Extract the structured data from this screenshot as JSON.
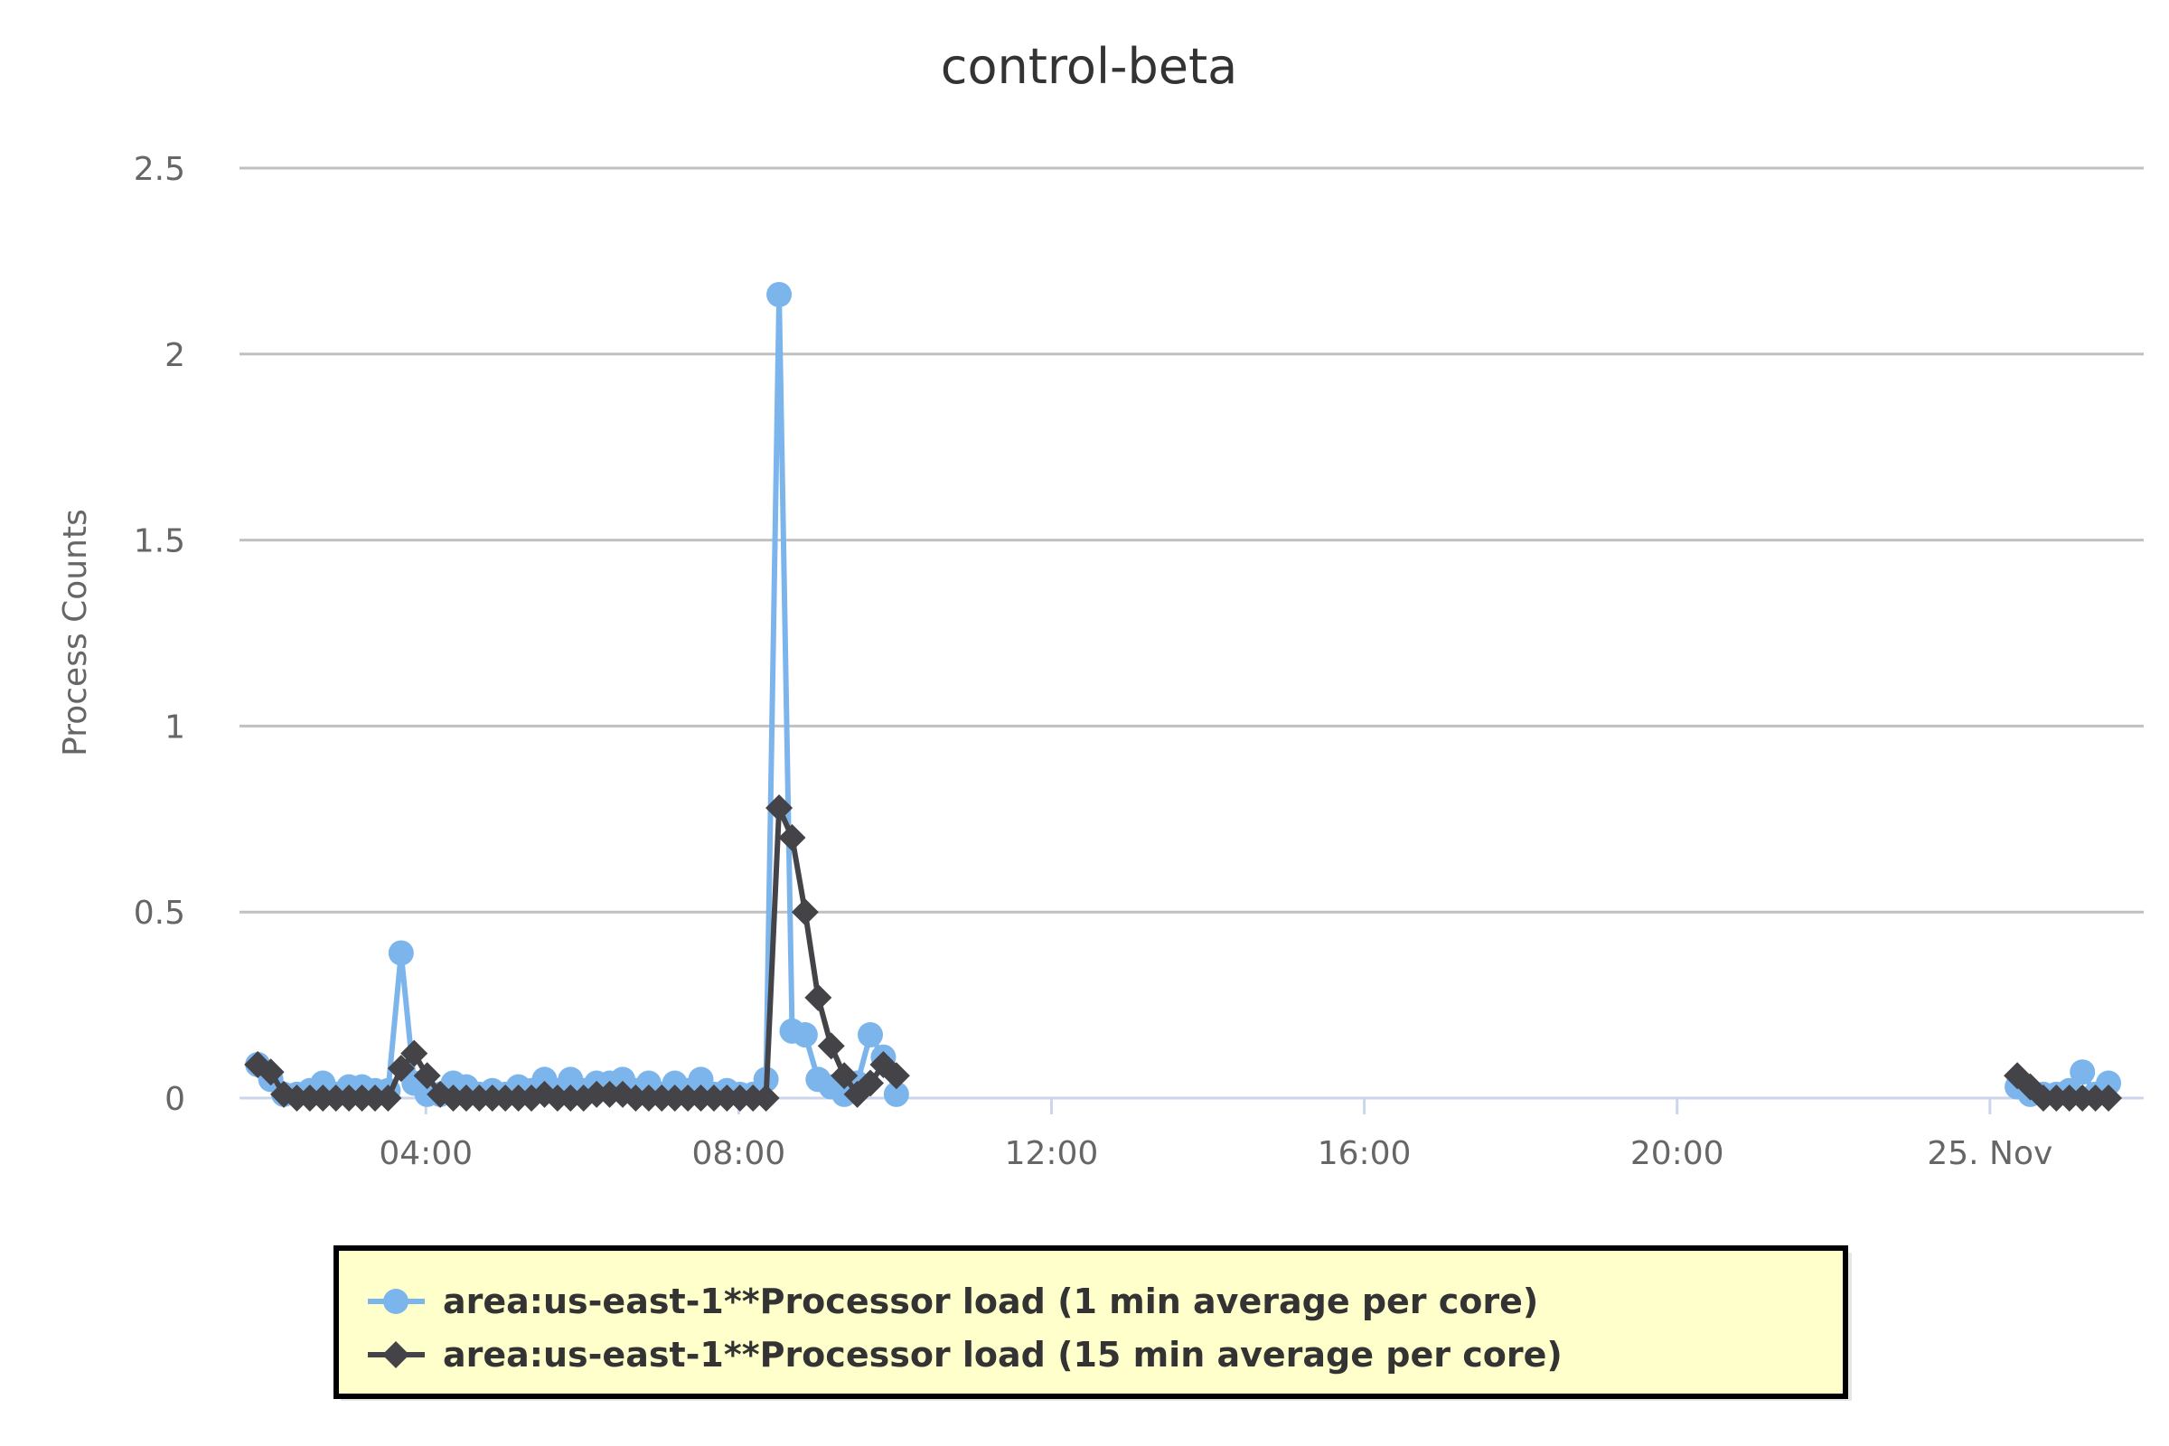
{
  "chart_data": {
    "type": "line",
    "title": "control-beta",
    "xlabel": "",
    "ylabel": "Process Counts",
    "ylim": [
      0,
      2.5
    ],
    "yticks": [
      {
        "value": 0,
        "label": "0"
      },
      {
        "value": 0.5,
        "label": "0.5"
      },
      {
        "value": 1,
        "label": "1"
      },
      {
        "value": 1.5,
        "label": "1.5"
      },
      {
        "value": 2,
        "label": "2"
      },
      {
        "value": 2.5,
        "label": "2.5"
      }
    ],
    "xlim": [
      "2024-11-24 01:37",
      "2024-11-25 01:58"
    ],
    "xticks": [
      {
        "value": "2024-11-24 04:00",
        "label": "04:00"
      },
      {
        "value": "2024-11-24 08:00",
        "label": "08:00"
      },
      {
        "value": "2024-11-24 12:00",
        "label": "12:00"
      },
      {
        "value": "2024-11-24 16:00",
        "label": "16:00"
      },
      {
        "value": "2024-11-24 20:00",
        "label": "20:00"
      },
      {
        "value": "2024-11-25 00:00",
        "label": "25. Nov"
      }
    ],
    "grid": true,
    "legend_position": "bottom",
    "series": [
      {
        "name": "area:us-east-1**Processor load (1 min average per core)",
        "color": "#7cb5ec",
        "marker": "circle",
        "segments": [
          [
            [
              "2024-11-24 01:51",
              0.09
            ],
            [
              "2024-11-24 02:01",
              0.05
            ],
            [
              "2024-11-24 02:11",
              0.01
            ],
            [
              "2024-11-24 02:21",
              0.01
            ],
            [
              "2024-11-24 02:31",
              0.02
            ],
            [
              "2024-11-24 02:41",
              0.04
            ],
            [
              "2024-11-24 02:51",
              0.01
            ],
            [
              "2024-11-24 03:01",
              0.03
            ],
            [
              "2024-11-24 03:11",
              0.03
            ],
            [
              "2024-11-24 03:21",
              0.02
            ],
            [
              "2024-11-24 03:31",
              0.02
            ],
            [
              "2024-11-24 03:41",
              0.39
            ],
            [
              "2024-11-24 03:51",
              0.04
            ],
            [
              "2024-11-24 04:01",
              0.01
            ],
            [
              "2024-11-24 04:11",
              0.01
            ],
            [
              "2024-11-24 04:21",
              0.04
            ],
            [
              "2024-11-24 04:31",
              0.03
            ],
            [
              "2024-11-24 04:41",
              0.01
            ],
            [
              "2024-11-24 04:51",
              0.02
            ],
            [
              "2024-11-24 05:01",
              0.01
            ],
            [
              "2024-11-24 05:11",
              0.03
            ],
            [
              "2024-11-24 05:21",
              0.02
            ],
            [
              "2024-11-24 05:31",
              0.05
            ],
            [
              "2024-11-24 05:41",
              0.02
            ],
            [
              "2024-11-24 05:51",
              0.05
            ],
            [
              "2024-11-24 06:01",
              0.02
            ],
            [
              "2024-11-24 06:11",
              0.04
            ],
            [
              "2024-11-24 06:21",
              0.04
            ],
            [
              "2024-11-24 06:31",
              0.05
            ],
            [
              "2024-11-24 06:41",
              0.02
            ],
            [
              "2024-11-24 06:51",
              0.04
            ],
            [
              "2024-11-24 07:01",
              0.01
            ],
            [
              "2024-11-24 07:11",
              0.04
            ],
            [
              "2024-11-24 07:21",
              0.02
            ],
            [
              "2024-11-24 07:31",
              0.05
            ],
            [
              "2024-11-24 07:41",
              0.01
            ],
            [
              "2024-11-24 07:51",
              0.02
            ],
            [
              "2024-11-24 08:01",
              0.01
            ],
            [
              "2024-11-24 08:11",
              0.01
            ],
            [
              "2024-11-24 08:21",
              0.05
            ],
            [
              "2024-11-24 08:31",
              2.16
            ],
            [
              "2024-11-24 08:41",
              0.18
            ],
            [
              "2024-11-24 08:51",
              0.17
            ],
            [
              "2024-11-24 09:01",
              0.05
            ],
            [
              "2024-11-24 09:11",
              0.03
            ],
            [
              "2024-11-24 09:21",
              0.01
            ],
            [
              "2024-11-24 09:31",
              0.04
            ],
            [
              "2024-11-24 09:41",
              0.17
            ],
            [
              "2024-11-24 09:51",
              0.11
            ],
            [
              "2024-11-24 10:01",
              0.01
            ]
          ],
          [
            [
              "2024-11-25 00:21",
              0.03
            ],
            [
              "2024-11-25 00:31",
              0.01
            ],
            [
              "2024-11-25 00:41",
              0.01
            ],
            [
              "2024-11-25 00:51",
              0.01
            ],
            [
              "2024-11-25 01:01",
              0.02
            ],
            [
              "2024-11-25 01:11",
              0.07
            ],
            [
              "2024-11-25 01:21",
              0.01
            ],
            [
              "2024-11-25 01:31",
              0.04
            ]
          ]
        ]
      },
      {
        "name": "area:us-east-1**Processor load (15 min average per core)",
        "color": "#434348",
        "marker": "diamond",
        "segments": [
          [
            [
              "2024-11-24 01:51",
              0.09
            ],
            [
              "2024-11-24 02:01",
              0.07
            ],
            [
              "2024-11-24 02:11",
              0.01
            ],
            [
              "2024-11-24 02:21",
              0.0
            ],
            [
              "2024-11-24 02:31",
              0.0
            ],
            [
              "2024-11-24 02:41",
              0.0
            ],
            [
              "2024-11-24 02:51",
              0.0
            ],
            [
              "2024-11-24 03:01",
              0.0
            ],
            [
              "2024-11-24 03:11",
              0.0
            ],
            [
              "2024-11-24 03:21",
              0.0
            ],
            [
              "2024-11-24 03:31",
              0.0
            ],
            [
              "2024-11-24 03:41",
              0.08
            ],
            [
              "2024-11-24 03:51",
              0.12
            ],
            [
              "2024-11-24 04:01",
              0.06
            ],
            [
              "2024-11-24 04:11",
              0.01
            ],
            [
              "2024-11-24 04:21",
              0.0
            ],
            [
              "2024-11-24 04:31",
              0.0
            ],
            [
              "2024-11-24 04:41",
              0.0
            ],
            [
              "2024-11-24 04:51",
              0.0
            ],
            [
              "2024-11-24 05:01",
              0.0
            ],
            [
              "2024-11-24 05:11",
              0.0
            ],
            [
              "2024-11-24 05:21",
              0.0
            ],
            [
              "2024-11-24 05:31",
              0.01
            ],
            [
              "2024-11-24 05:41",
              0.0
            ],
            [
              "2024-11-24 05:51",
              0.0
            ],
            [
              "2024-11-24 06:01",
              0.0
            ],
            [
              "2024-11-24 06:11",
              0.01
            ],
            [
              "2024-11-24 06:21",
              0.01
            ],
            [
              "2024-11-24 06:31",
              0.01
            ],
            [
              "2024-11-24 06:41",
              0.0
            ],
            [
              "2024-11-24 06:51",
              0.0
            ],
            [
              "2024-11-24 07:01",
              0.0
            ],
            [
              "2024-11-24 07:11",
              0.0
            ],
            [
              "2024-11-24 07:21",
              0.0
            ],
            [
              "2024-11-24 07:31",
              0.0
            ],
            [
              "2024-11-24 07:41",
              0.0
            ],
            [
              "2024-11-24 07:51",
              0.0
            ],
            [
              "2024-11-24 08:01",
              0.0
            ],
            [
              "2024-11-24 08:11",
              0.0
            ],
            [
              "2024-11-24 08:21",
              0.0
            ],
            [
              "2024-11-24 08:31",
              0.78
            ],
            [
              "2024-11-24 08:41",
              0.7
            ],
            [
              "2024-11-24 08:51",
              0.5
            ],
            [
              "2024-11-24 09:01",
              0.27
            ],
            [
              "2024-11-24 09:11",
              0.14
            ],
            [
              "2024-11-24 09:21",
              0.06
            ],
            [
              "2024-11-24 09:31",
              0.01
            ],
            [
              "2024-11-24 09:41",
              0.04
            ],
            [
              "2024-11-24 09:51",
              0.09
            ],
            [
              "2024-11-24 10:01",
              0.06
            ]
          ],
          [
            [
              "2024-11-25 00:21",
              0.06
            ],
            [
              "2024-11-25 00:31",
              0.03
            ],
            [
              "2024-11-25 00:41",
              0.0
            ],
            [
              "2024-11-25 00:51",
              0.0
            ],
            [
              "2024-11-25 01:01",
              0.0
            ],
            [
              "2024-11-25 01:11",
              0.0
            ],
            [
              "2024-11-25 01:21",
              0.0
            ],
            [
              "2024-11-25 01:31",
              0.0
            ]
          ]
        ]
      }
    ]
  },
  "colors": {
    "grid": "#c0c0c0",
    "axis": "#ccd6eb",
    "legend_bg": "#ffffcc",
    "legend_border": "#000000"
  }
}
